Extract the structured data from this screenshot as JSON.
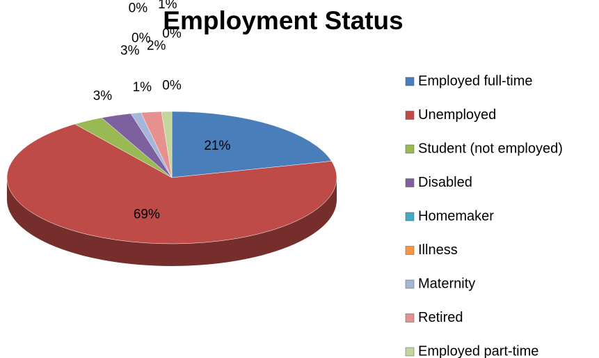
{
  "chart_data": {
    "type": "pie",
    "title": "Employment Status",
    "categories": [
      "Employed full-time",
      "Unemployed",
      "Student (not employed)",
      "Disabled",
      "Homemaker",
      "Illness",
      "Maternity",
      "Retired",
      "Employed part-time",
      null,
      null
    ],
    "values": [
      21,
      69,
      3,
      3,
      0,
      0,
      1,
      2,
      1,
      0,
      0
    ],
    "colors": [
      "#4a7ebb",
      "#be4b48",
      "#98b954",
      "#7d60a0",
      "#46aac5",
      "#f79646",
      "#a5b6d9",
      "#e6908f",
      "#c3d69b",
      "#2c4d75",
      "#772c2a"
    ],
    "legend": "right"
  }
}
